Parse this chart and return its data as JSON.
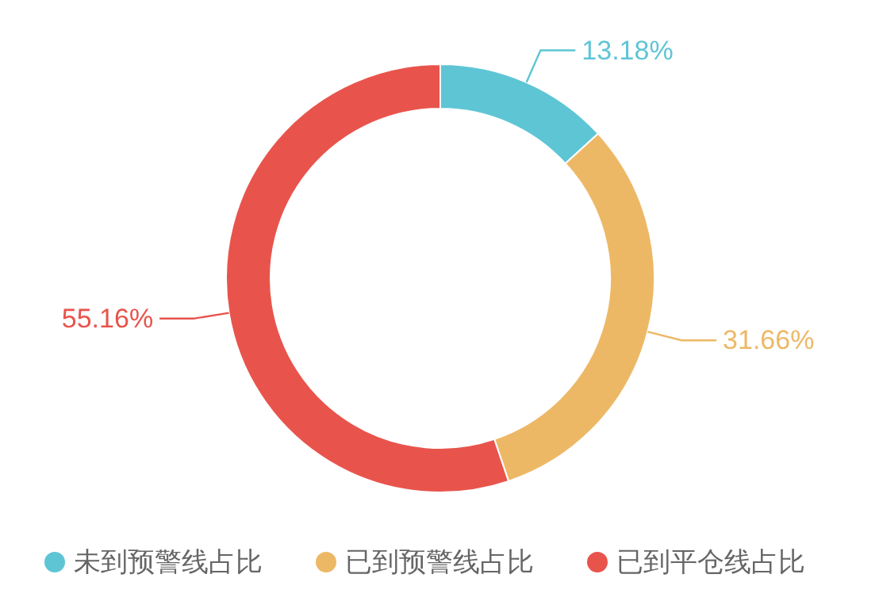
{
  "chart_data": {
    "type": "donut",
    "categories": [
      "未到预警线占比",
      "已到预警线占比",
      "已到平仓线占比"
    ],
    "values": [
      13.18,
      31.66,
      55.16
    ],
    "colors": [
      "#5ec5d5",
      "#edb866",
      "#e8544c"
    ],
    "value_labels": [
      "13.18%",
      "31.66%",
      "55.16%"
    ],
    "legend": "bottom"
  }
}
